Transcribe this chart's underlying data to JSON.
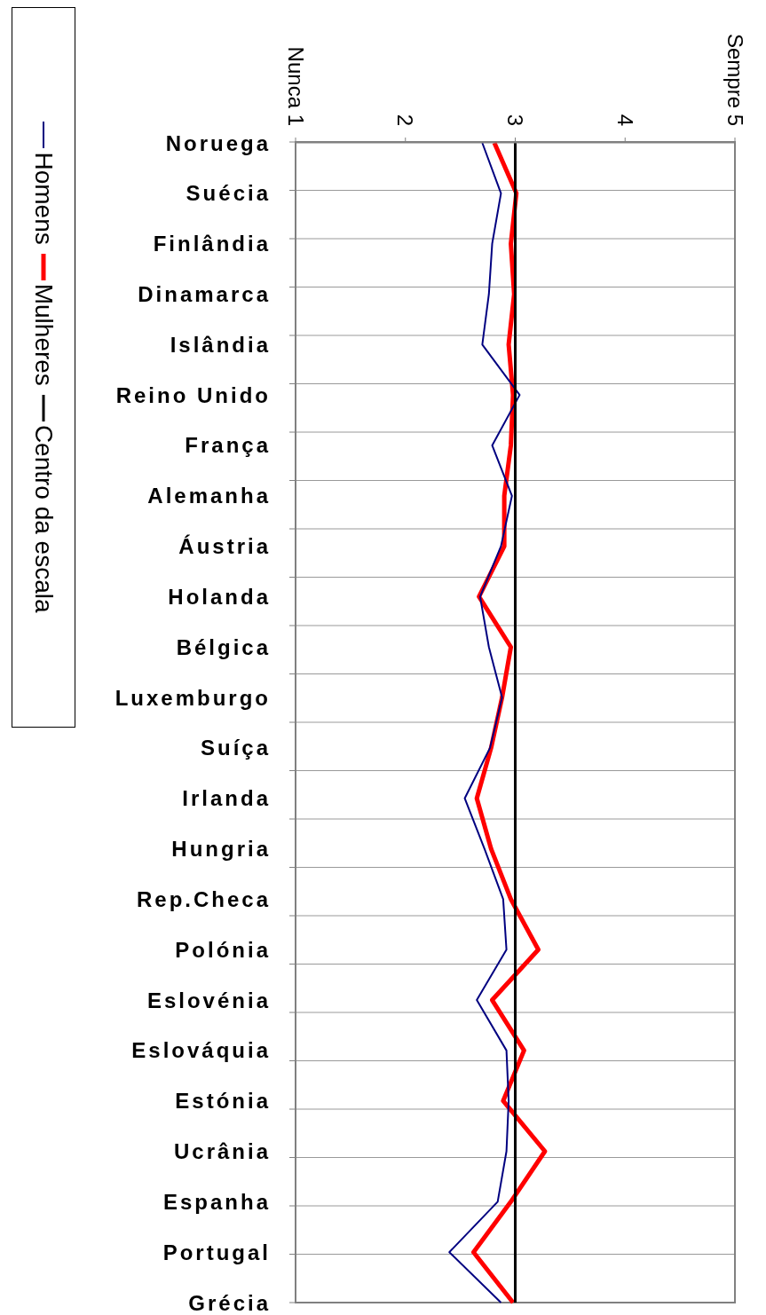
{
  "chart_data": {
    "type": "line",
    "orientation": "horizontal",
    "categories": [
      "Noruega",
      "Suécia",
      "Finlândia",
      "Dinamarca",
      "Islândia",
      "Reino Unido",
      "França",
      "Alemanha",
      "Áustria",
      "Holanda",
      "Bélgica",
      "Luxemburgo",
      "Suíça",
      "Irlanda",
      "Hungria",
      "Rep.Checa",
      "Polónia",
      "Eslovénia",
      "Eslováquia",
      "Estónia",
      "Ucrânia",
      "Espanha",
      "Portugal",
      "Grécia"
    ],
    "series": [
      {
        "name": "Homens",
        "color": "#000080",
        "values": [
          2.7,
          2.87,
          2.79,
          2.76,
          2.7,
          3.04,
          2.79,
          2.97,
          2.87,
          2.68,
          2.76,
          2.88,
          2.77,
          2.54,
          2.72,
          2.89,
          2.92,
          2.65,
          2.92,
          2.94,
          2.92,
          2.84,
          2.4,
          2.87
        ]
      },
      {
        "name": "Mulheres",
        "color": "#ff0000",
        "values": [
          2.81,
          3.01,
          2.96,
          2.99,
          2.94,
          2.98,
          2.96,
          2.9,
          2.9,
          2.67,
          2.96,
          2.88,
          2.78,
          2.65,
          2.78,
          2.96,
          3.21,
          2.79,
          3.08,
          2.89,
          3.27,
          2.96,
          2.62,
          2.98
        ]
      },
      {
        "name": "Centro da escala",
        "color": "#000000",
        "values": [
          3,
          3,
          3,
          3,
          3,
          3,
          3,
          3,
          3,
          3,
          3,
          3,
          3,
          3,
          3,
          3,
          3,
          3,
          3,
          3,
          3,
          3,
          3,
          3
        ]
      }
    ],
    "xlim": [
      1,
      5
    ],
    "xticks": [
      {
        "value": 1,
        "label": "Nunca 1"
      },
      2,
      3,
      4,
      {
        "value": 5,
        "label": "Sempre 5"
      }
    ],
    "grid": "y",
    "legend": "left"
  }
}
